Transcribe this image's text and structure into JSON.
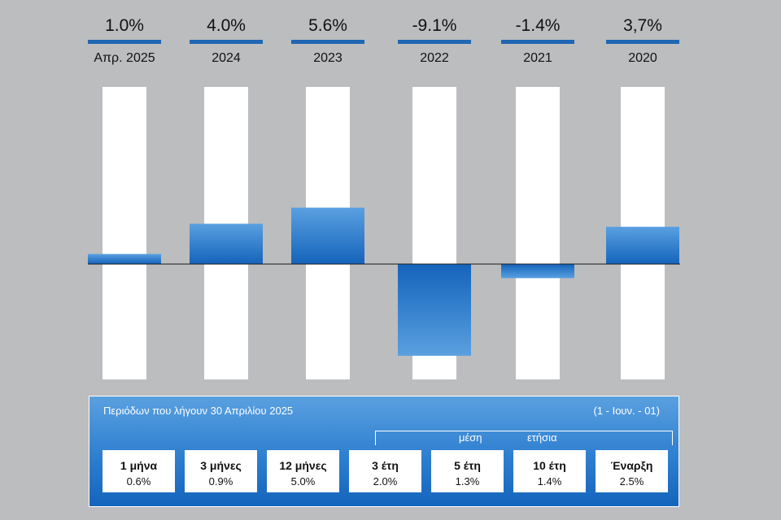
{
  "chart_data": {
    "type": "bar",
    "categories": [
      "Απρ. 2025",
      "2024",
      "2023",
      "2022",
      "2021",
      "2020"
    ],
    "value_labels": [
      "1.0%",
      "4.0%",
      "5.6%",
      "-9.1%",
      "-1.4%",
      "3,7%"
    ],
    "values": [
      1.0,
      4.0,
      5.6,
      -9.1,
      -1.4,
      3.7
    ],
    "ylim": [
      -6.0,
      10.0
    ],
    "grid": false,
    "colors": {
      "bar_top": "#5aa0e0",
      "bar_bottom": "#1464bc",
      "track": "#ffffff",
      "rule": "#1f66b3",
      "background": "#bcbdbf"
    }
  },
  "summary": {
    "title": "Περιόδων που λήγουν 30 Απριλίου 2025",
    "note": "(1 - Ιουν. - 01)",
    "avg_label_1": "μέση",
    "avg_label_2": "ετήσια",
    "periods": [
      {
        "label": "1 μήνα",
        "value": "0.6%"
      },
      {
        "label": "3 μήνες",
        "value": "0.9%"
      },
      {
        "label": "12 μήνες",
        "value": "5.0%"
      },
      {
        "label": "3 έτη",
        "value": "2.0%"
      },
      {
        "label": "5 έτη",
        "value": "1.3%"
      },
      {
        "label": "10 έτη",
        "value": "1.4%"
      },
      {
        "label": "Έναρξη",
        "value": "2.5%"
      }
    ]
  }
}
